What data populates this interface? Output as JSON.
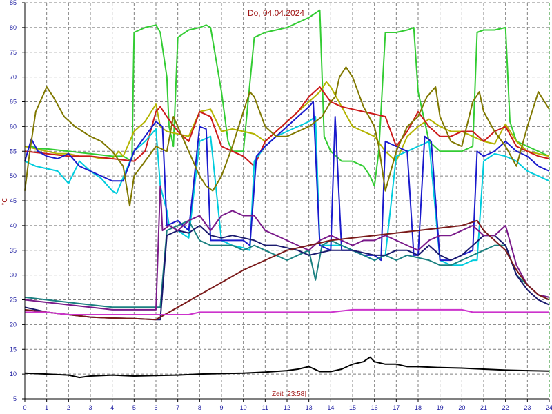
{
  "chart_data": {
    "type": "line",
    "title": "Do, 04.04.2024",
    "xlabel": "Zeit [23:58]",
    "ylabel": "°C",
    "xlim": [
      0,
      24
    ],
    "ylim": [
      5,
      85
    ],
    "x_ticks": [
      0,
      1,
      2,
      3,
      4,
      5,
      6,
      7,
      8,
      9,
      10,
      11,
      12,
      13,
      14,
      15,
      16,
      17,
      18,
      19,
      20,
      21,
      22,
      23,
      24
    ],
    "y_ticks": [
      5,
      10,
      15,
      20,
      25,
      30,
      35,
      40,
      45,
      50,
      55,
      60,
      65,
      70,
      75,
      80,
      85
    ],
    "grid": true,
    "colors": {
      "grid": "#7f7f7f",
      "axis": "#000000",
      "right_edge": "#1a8a1a",
      "tick_text": "#1a1aa0",
      "title_text": "#a01414"
    },
    "series": [
      {
        "color": "#33cc33",
        "x": [
          0,
          0.3,
          0.6,
          1,
          2,
          3,
          4,
          4.5,
          4.9,
          5,
          5.5,
          6,
          6.2,
          6.5,
          6.6,
          6.8,
          7,
          7.5,
          8,
          8.3,
          8.5,
          9,
          9.3,
          9.5,
          10,
          10.5,
          11,
          11.5,
          12,
          12.5,
          13,
          13.5,
          13.7,
          14,
          14.5,
          15,
          15.5,
          15.8,
          16,
          16.2,
          16.5,
          17,
          17.5,
          17.8,
          18,
          18.5,
          19,
          19.5,
          20,
          20.5,
          20.7,
          21,
          21.5,
          22,
          22.2,
          22.5,
          23,
          23.5,
          24
        ],
        "y": [
          56,
          56,
          55.5,
          55.5,
          55,
          54.5,
          54,
          54,
          53,
          79,
          80,
          80.5,
          79,
          70,
          60,
          56,
          78,
          79.5,
          80,
          80.5,
          80,
          67,
          57,
          55,
          55,
          78,
          79,
          79.5,
          80,
          81,
          82,
          83.5,
          58,
          55,
          53,
          53,
          52,
          50,
          48,
          55,
          79,
          79,
          79.5,
          80,
          67,
          57,
          55,
          55,
          55,
          56,
          79,
          79.5,
          79.5,
          80,
          61,
          57,
          56,
          55,
          54
        ]
      },
      {
        "color": "#b3b300",
        "x": [
          0,
          0.5,
          1,
          1.5,
          2,
          2.5,
          3,
          3.5,
          4,
          4.3,
          4.5,
          5,
          5.5,
          6,
          6.2,
          6.5,
          7,
          7.5,
          8,
          8.5,
          9,
          9.5,
          10,
          10.5,
          11,
          11.5,
          12,
          12.5,
          13,
          13.5,
          13.8,
          14,
          14.5,
          15,
          15.5,
          16,
          16.5,
          17,
          17.5,
          18,
          18.5,
          19,
          19.5,
          20,
          20.5,
          21,
          21.5,
          22,
          22.5,
          23,
          23.5,
          24
        ],
        "y": [
          56,
          55.5,
          55,
          54.5,
          54.5,
          54,
          54,
          53.5,
          53.5,
          55,
          54,
          59,
          61,
          64.5,
          60,
          59,
          58.5,
          58,
          63,
          63.5,
          59,
          59.5,
          59,
          58.5,
          57,
          59,
          61,
          63,
          65,
          67,
          69,
          68,
          64,
          60,
          59,
          58,
          55,
          53,
          58,
          60,
          61.5,
          60,
          59,
          59,
          58,
          57,
          56.5,
          60.5,
          57,
          55,
          54.5,
          54
        ]
      },
      {
        "color": "#cc1a1a",
        "x": [
          0,
          1,
          2,
          3,
          4,
          5,
          5.5,
          6,
          6.2,
          6.5,
          7,
          7.5,
          8,
          8.5,
          9,
          9.5,
          10,
          10.5,
          11,
          11.5,
          12,
          12.5,
          13,
          13.5,
          14,
          14.5,
          15,
          15.5,
          16,
          16.5,
          17,
          17.5,
          18,
          18.5,
          19,
          19.5,
          20,
          20.5,
          21,
          21.5,
          22,
          22.5,
          23,
          23.5,
          24
        ],
        "y": [
          55,
          54.5,
          54,
          54,
          53.5,
          53,
          55,
          63,
          64,
          62,
          59,
          57,
          63,
          62,
          56,
          55,
          54,
          52,
          57,
          59,
          61,
          63,
          66,
          68,
          65,
          64,
          63.5,
          63,
          62.5,
          62,
          56,
          59,
          63,
          60,
          58,
          58,
          59,
          59,
          57,
          59,
          60,
          56,
          55,
          54,
          53.5
        ]
      },
      {
        "color": "#00ccdd",
        "x": [
          0,
          0.5,
          1,
          1.5,
          2,
          2.5,
          3,
          3.5,
          4,
          4.2,
          5,
          5.5,
          6,
          6.2,
          6.5,
          6.6,
          7,
          7.5,
          8,
          8.5,
          9,
          9.5,
          10,
          10.3,
          10.5,
          11,
          11.5,
          12,
          12.5,
          13,
          13.3,
          13.5,
          14,
          14.5,
          15,
          15.5,
          16,
          16.5,
          17,
          17.5,
          18,
          18.5,
          19,
          19.5,
          20,
          20.5,
          20.7,
          21,
          21.5,
          22,
          22.5,
          23,
          23.5,
          24
        ],
        "y": [
          53,
          52,
          51.5,
          51,
          48.5,
          53,
          51,
          49.5,
          47,
          46.5,
          55,
          57,
          59.5,
          48,
          43,
          40,
          39,
          37.5,
          57,
          58,
          37,
          36,
          35.5,
          35,
          53,
          56,
          58,
          59,
          60,
          61,
          62,
          36,
          36,
          36,
          35,
          34,
          33,
          34,
          54,
          55,
          56,
          57,
          33,
          32,
          32,
          33,
          33,
          53,
          54.5,
          54,
          53,
          51,
          50,
          49
        ]
      },
      {
        "color": "#1a1acc",
        "x": [
          0,
          0.3,
          0.6,
          1,
          1.5,
          2,
          2.5,
          3,
          3.5,
          4,
          4.5,
          5,
          5.5,
          6,
          6.3,
          6.5,
          7,
          7.5,
          8,
          8.3,
          8.5,
          9,
          9.5,
          10,
          10.3,
          10.6,
          11,
          11.5,
          12,
          12.5,
          13,
          13.2,
          13.5,
          14,
          14.2,
          14.5,
          15,
          15.5,
          16,
          16.3,
          16.5,
          17,
          17.5,
          17.8,
          18,
          18.3,
          18.6,
          19,
          19.5,
          20,
          20.5,
          20.7,
          21,
          21.5,
          22,
          22.5,
          23,
          23.5,
          24
        ],
        "y": [
          53,
          57.5,
          55,
          54,
          53.5,
          54.5,
          52,
          51,
          50,
          49,
          49,
          55,
          58,
          61,
          60,
          40,
          41,
          39,
          60,
          59.5,
          37,
          37,
          37,
          37,
          36,
          54,
          56,
          58,
          60,
          62,
          64,
          65,
          36,
          35,
          62,
          35,
          35,
          34,
          34,
          33,
          57,
          56,
          55,
          34,
          34,
          58,
          57,
          33,
          33,
          34,
          35,
          55,
          54,
          55,
          57,
          55,
          54,
          52,
          51
        ]
      },
      {
        "color": "#807800",
        "x": [
          0,
          0.2,
          0.5,
          1,
          1.3,
          1.8,
          2.3,
          3,
          3.5,
          4,
          4.5,
          4.8,
          5,
          5.5,
          6,
          6.5,
          6.8,
          7,
          7.5,
          8,
          8.3,
          8.6,
          9,
          9.5,
          10,
          10.3,
          10.5,
          11,
          11.5,
          12,
          12.5,
          13,
          13.3,
          13.6,
          14,
          14.2,
          14.4,
          14.7,
          15,
          15.5,
          16,
          16.2,
          16.5,
          17,
          17.5,
          18,
          18.4,
          18.8,
          19,
          19.5,
          20,
          20.5,
          20.8,
          21,
          21.5,
          22,
          22.5,
          23,
          23.5,
          24
        ],
        "y": [
          47,
          54,
          63,
          68,
          66,
          62,
          60,
          58,
          57,
          55,
          52,
          44,
          50,
          53,
          56,
          55,
          62,
          60,
          55,
          50,
          48,
          47,
          50,
          56,
          63,
          67,
          66,
          60,
          58,
          58,
          59,
          60,
          61,
          62,
          65,
          66,
          70,
          72,
          70,
          64,
          60,
          56,
          47,
          55,
          60,
          62,
          66,
          68,
          62,
          57,
          56,
          65,
          67,
          63,
          59,
          56,
          52,
          60,
          67,
          63.5
        ]
      },
      {
        "color": "#1a8080",
        "x": [
          0,
          1,
          2,
          3,
          4,
          5,
          6,
          6.2,
          6.5,
          7,
          7.5,
          8,
          8.5,
          9,
          9.5,
          10,
          10.5,
          11,
          11.5,
          12,
          12.5,
          13,
          13.3,
          13.6,
          14,
          14.5,
          15,
          15.5,
          16,
          16.5,
          17,
          17.5,
          18,
          18.5,
          19,
          19.5,
          20,
          20.5,
          21,
          21.5,
          22,
          22.5,
          23,
          23.5,
          24
        ],
        "y": [
          25.5,
          25,
          24.5,
          24,
          23.5,
          23.5,
          23.5,
          23.5,
          39,
          40,
          41,
          37,
          36,
          36,
          36,
          35,
          36,
          35,
          34,
          33,
          34,
          35,
          29,
          36,
          37,
          36,
          35,
          34,
          33,
          34,
          33,
          34,
          33.5,
          33,
          32,
          32,
          33,
          34,
          35,
          36,
          36,
          30,
          28,
          26,
          25.5
        ]
      },
      {
        "color": "#1a1a6e",
        "x": [
          0,
          1,
          2,
          3,
          4,
          5,
          6,
          6.2,
          6.5,
          7,
          7.5,
          8,
          8.5,
          9,
          9.5,
          10,
          10.5,
          11,
          11.5,
          12,
          12.5,
          13,
          13.5,
          14,
          14.5,
          15,
          15.5,
          16,
          16.5,
          17,
          17.5,
          18,
          18.5,
          19,
          19.5,
          20,
          20.5,
          21,
          21.5,
          22,
          22.5,
          23,
          23.5,
          24
        ],
        "y": [
          23.5,
          22.5,
          22,
          21.5,
          21.3,
          21.2,
          21,
          21,
          38,
          39,
          38.5,
          40,
          38,
          37.5,
          38,
          37.5,
          37,
          36,
          36,
          35.5,
          35,
          34,
          34.5,
          35,
          35,
          35,
          34.5,
          34,
          34,
          35,
          35,
          34,
          36,
          34,
          33,
          34,
          36,
          38,
          38,
          36,
          30,
          27,
          25,
          24
        ]
      },
      {
        "color": "#7a1a8a",
        "x": [
          0,
          1,
          2,
          3,
          4,
          5,
          6,
          6.2,
          6.3,
          6.6,
          7,
          7.5,
          8,
          8.5,
          9,
          9.5,
          10,
          10.5,
          11,
          11.5,
          12,
          12.5,
          13,
          13.5,
          14,
          14.5,
          15,
          15.5,
          16,
          16.5,
          17,
          17.5,
          18,
          18.5,
          19,
          19.5,
          20,
          20.5,
          21,
          21.5,
          22,
          22.5,
          23,
          23.5,
          24
        ],
        "y": [
          25,
          24.5,
          24,
          23.5,
          23,
          23,
          23,
          48,
          39,
          40,
          39,
          41,
          42,
          39,
          42,
          43,
          42,
          42,
          39,
          38,
          37,
          36,
          35,
          37,
          38,
          37,
          36,
          37,
          37,
          38,
          37,
          36,
          35,
          37,
          38,
          38,
          39,
          40,
          38,
          38,
          40,
          32,
          28,
          26,
          25.5
        ]
      },
      {
        "color": "#7a1a1a",
        "x": [
          0,
          1,
          2,
          3,
          4,
          5,
          6,
          7,
          8,
          9,
          10,
          11,
          12,
          13,
          14,
          15,
          16,
          17,
          18,
          19,
          20,
          20.7,
          21,
          21.5,
          22,
          22.5,
          23,
          23.5,
          24
        ],
        "y": [
          23,
          22.5,
          22,
          21.5,
          21.3,
          21.2,
          21,
          23.5,
          26,
          28.5,
          31,
          33,
          35,
          36,
          37,
          37.5,
          38,
          38.5,
          39,
          39.5,
          40,
          41,
          39,
          37,
          35,
          31,
          28,
          26,
          25
        ]
      },
      {
        "color": "#cc33cc",
        "x": [
          0,
          1,
          2,
          3,
          4,
          5,
          6,
          6.5,
          7,
          7.5,
          8,
          8.5,
          9,
          10,
          11,
          12,
          13,
          14,
          15,
          16,
          17,
          18,
          19,
          20,
          20.5,
          21,
          22,
          23,
          24
        ],
        "y": [
          22.5,
          22.5,
          22,
          22,
          22,
          22,
          22,
          22,
          22,
          22,
          22.5,
          22.5,
          22.5,
          22.5,
          22.5,
          22.5,
          22.5,
          22.5,
          23,
          23,
          23,
          23,
          23,
          23,
          22.5,
          22.5,
          22.5,
          22.5,
          22.5
        ]
      },
      {
        "color": "#000000",
        "x": [
          0,
          1,
          2,
          2.5,
          3,
          4,
          5,
          6,
          7,
          8,
          9,
          10,
          11,
          12,
          12.5,
          13,
          13.5,
          14,
          14.5,
          15,
          15.5,
          15.8,
          16,
          16.5,
          17,
          17.5,
          18,
          19,
          20,
          21,
          22,
          23,
          24
        ],
        "y": [
          10.2,
          10,
          9.8,
          9.3,
          9.6,
          9.8,
          9.6,
          9.7,
          9.8,
          10,
          10.1,
          10.2,
          10.4,
          10.7,
          11,
          11.5,
          10.5,
          10.5,
          11,
          12,
          12.5,
          13.4,
          12.5,
          12,
          12,
          11.5,
          11.5,
          11.3,
          11.2,
          11,
          10.8,
          10.7,
          10.6
        ]
      }
    ]
  }
}
